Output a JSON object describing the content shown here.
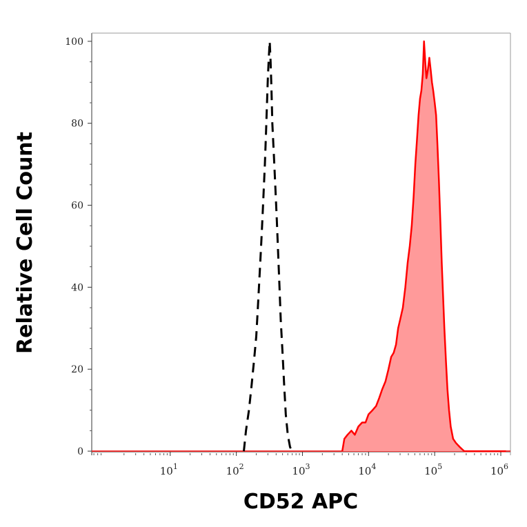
{
  "chart_data": {
    "type": "area",
    "title": "",
    "xlabel": "CD52 APC",
    "ylabel": "Relative Cell Count",
    "x_scale": "log",
    "xlim": [
      0.65,
      1400000
    ],
    "ylim": [
      -1,
      102
    ],
    "x_ticks": [
      {
        "value": 10,
        "base": "10",
        "exp": "1"
      },
      {
        "value": 100,
        "base": "10",
        "exp": "2"
      },
      {
        "value": 1000,
        "base": "10",
        "exp": "3"
      },
      {
        "value": 10000,
        "base": "10",
        "exp": "4"
      },
      {
        "value": 100000,
        "base": "10",
        "exp": "5"
      },
      {
        "value": 1000000,
        "base": "10",
        "exp": "6"
      }
    ],
    "y_ticks": [
      0,
      20,
      40,
      60,
      80,
      100
    ],
    "grid": false,
    "series": [
      {
        "style": "dashed",
        "color": "#000000",
        "fill": "none",
        "points": [
          [
            130,
            0
          ],
          [
            140,
            5
          ],
          [
            155,
            10
          ],
          [
            170,
            16
          ],
          [
            185,
            22
          ],
          [
            200,
            28
          ],
          [
            210,
            34
          ],
          [
            220,
            40
          ],
          [
            230,
            46
          ],
          [
            240,
            52
          ],
          [
            250,
            58
          ],
          [
            260,
            64
          ],
          [
            270,
            70
          ],
          [
            280,
            77
          ],
          [
            290,
            84
          ],
          [
            300,
            91
          ],
          [
            310,
            96
          ],
          [
            320,
            100
          ],
          [
            330,
            95
          ],
          [
            340,
            88
          ],
          [
            350,
            80
          ],
          [
            370,
            72
          ],
          [
            390,
            64
          ],
          [
            410,
            56
          ],
          [
            430,
            48
          ],
          [
            450,
            40
          ],
          [
            470,
            32
          ],
          [
            500,
            24
          ],
          [
            530,
            16
          ],
          [
            560,
            9
          ],
          [
            600,
            4
          ],
          [
            650,
            1
          ],
          [
            700,
            0
          ]
        ]
      },
      {
        "style": "solid",
        "color": "#ff0000",
        "fill": "#ff9a9a",
        "points": [
          [
            4000,
            0
          ],
          [
            4300,
            3
          ],
          [
            4800,
            4
          ],
          [
            5500,
            5
          ],
          [
            6200,
            4
          ],
          [
            7000,
            6
          ],
          [
            8000,
            7
          ],
          [
            9000,
            7
          ],
          [
            10000,
            9
          ],
          [
            11500,
            10
          ],
          [
            13000,
            11
          ],
          [
            14500,
            13
          ],
          [
            16000,
            15
          ],
          [
            18000,
            17
          ],
          [
            20000,
            20
          ],
          [
            22000,
            23
          ],
          [
            24000,
            24
          ],
          [
            26000,
            26
          ],
          [
            28000,
            30
          ],
          [
            30000,
            32
          ],
          [
            33000,
            35
          ],
          [
            36000,
            40
          ],
          [
            39000,
            46
          ],
          [
            42000,
            50
          ],
          [
            45000,
            55
          ],
          [
            48000,
            62
          ],
          [
            51000,
            70
          ],
          [
            54000,
            76
          ],
          [
            57000,
            82
          ],
          [
            60000,
            86
          ],
          [
            63000,
            88
          ],
          [
            66000,
            92
          ],
          [
            69000,
            100
          ],
          [
            72000,
            95
          ],
          [
            75000,
            91
          ],
          [
            79000,
            93
          ],
          [
            83000,
            96
          ],
          [
            87000,
            93
          ],
          [
            91000,
            90
          ],
          [
            95000,
            88
          ],
          [
            100000,
            85
          ],
          [
            105000,
            82
          ],
          [
            110000,
            75
          ],
          [
            116000,
            66
          ],
          [
            122000,
            56
          ],
          [
            128000,
            46
          ],
          [
            134000,
            38
          ],
          [
            140000,
            30
          ],
          [
            148000,
            22
          ],
          [
            156000,
            15
          ],
          [
            165000,
            10
          ],
          [
            175000,
            6
          ],
          [
            190000,
            3
          ],
          [
            210000,
            2
          ],
          [
            240000,
            1
          ],
          [
            280000,
            0
          ],
          [
            1200000,
            0
          ]
        ]
      }
    ]
  }
}
